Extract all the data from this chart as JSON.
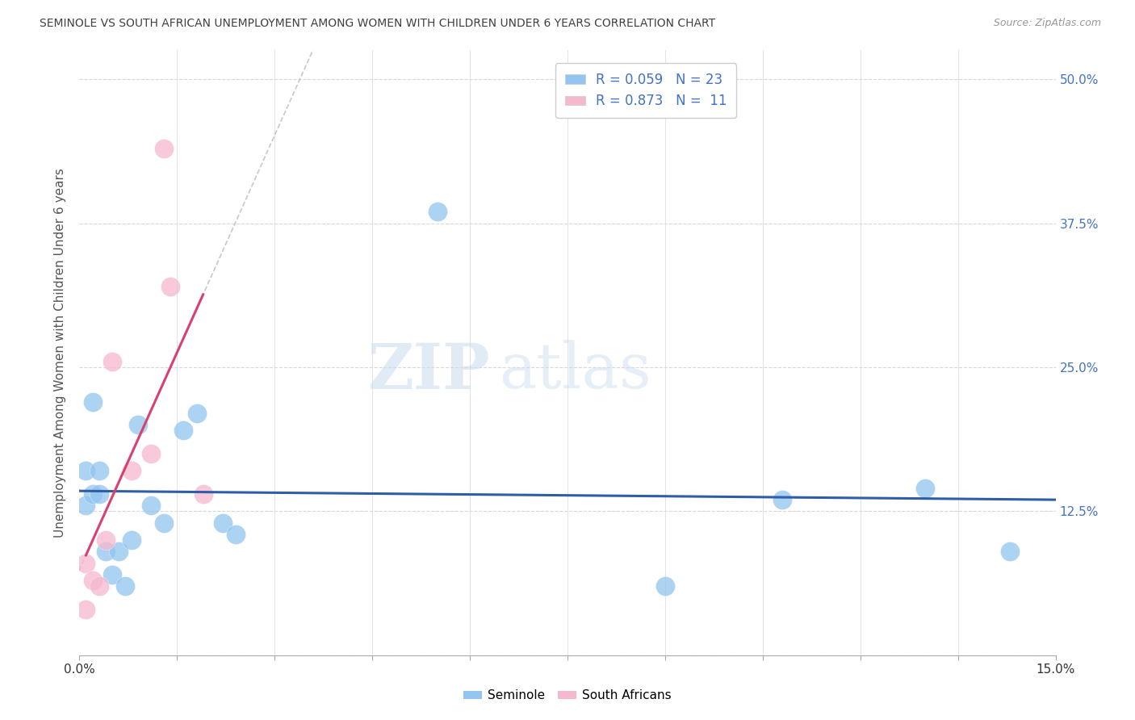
{
  "title": "SEMINOLE VS SOUTH AFRICAN UNEMPLOYMENT AMONG WOMEN WITH CHILDREN UNDER 6 YEARS CORRELATION CHART",
  "source": "Source: ZipAtlas.com",
  "ylabel": "Unemployment Among Women with Children Under 6 years",
  "xlim": [
    0,
    0.15
  ],
  "ylim": [
    0.0,
    0.525
  ],
  "xticks": [
    0.0,
    0.015,
    0.03,
    0.045,
    0.06,
    0.075,
    0.09,
    0.105,
    0.12,
    0.135,
    0.15
  ],
  "yticks": [
    0.0,
    0.125,
    0.25,
    0.375,
    0.5
  ],
  "yticklabels_right": [
    "",
    "12.5%",
    "25.0%",
    "37.5%",
    "50.0%"
  ],
  "watermark_zip": "ZIP",
  "watermark_atlas": "atlas",
  "legend_blue_R": "0.059",
  "legend_blue_N": "23",
  "legend_pink_R": "0.873",
  "legend_pink_N": "11",
  "seminole_x": [
    0.001,
    0.001,
    0.002,
    0.002,
    0.003,
    0.003,
    0.004,
    0.005,
    0.006,
    0.007,
    0.008,
    0.009,
    0.011,
    0.013,
    0.016,
    0.018,
    0.022,
    0.024,
    0.055,
    0.09,
    0.108,
    0.13,
    0.143
  ],
  "seminole_y": [
    0.13,
    0.16,
    0.14,
    0.22,
    0.14,
    0.16,
    0.09,
    0.07,
    0.09,
    0.06,
    0.1,
    0.2,
    0.13,
    0.115,
    0.195,
    0.21,
    0.115,
    0.105,
    0.385,
    0.06,
    0.135,
    0.145,
    0.09
  ],
  "sa_x": [
    0.001,
    0.001,
    0.002,
    0.003,
    0.004,
    0.005,
    0.008,
    0.011,
    0.013,
    0.014,
    0.019
  ],
  "sa_y": [
    0.04,
    0.08,
    0.065,
    0.06,
    0.1,
    0.255,
    0.16,
    0.175,
    0.44,
    0.32,
    0.14
  ],
  "blue_color": "#92C5F0",
  "pink_color": "#F5B8CE",
  "blue_line_color": "#2E5EA8",
  "pink_line_color": "#D94070",
  "grid_color": "#D8D8D8",
  "axis_label_color": "#4472C4",
  "title_color": "#404040",
  "source_color": "#999999"
}
